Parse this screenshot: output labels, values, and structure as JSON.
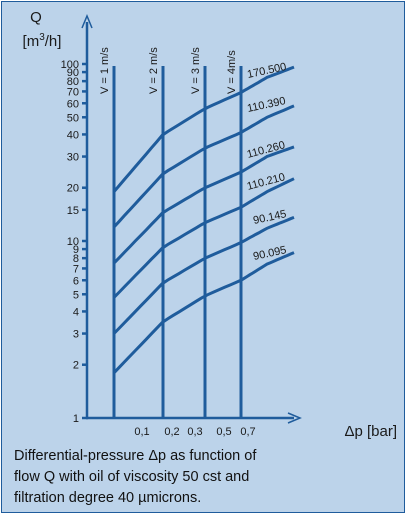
{
  "caption": {
    "line1": "Differential-pressure Δp as function of",
    "line2": "flow Q with oil of viscosity 50 cst and",
    "line3": "filtration degree 40 µmicrons."
  },
  "colors": {
    "accent": "#1f5c9c",
    "background": "#bcd3ea"
  },
  "chart_data": {
    "type": "line",
    "title": "",
    "ylabel": "Q",
    "ylabel_unit": "[m3/h]",
    "xlabel": "Δp [bar]",
    "y_scale": "log",
    "ylim": [
      1,
      100
    ],
    "xlim": [
      0,
      0.9
    ],
    "x_ticks": [
      0.1,
      0.2,
      0.3,
      0.5,
      0.7
    ],
    "x_tick_labels": [
      "0,1",
      "0,2",
      "0,3",
      "0,5",
      "0,7"
    ],
    "y_ticks": [
      1,
      2,
      3,
      4,
      5,
      6,
      7,
      8,
      9,
      10,
      15,
      20,
      30,
      40,
      50,
      60,
      70,
      80,
      90,
      100
    ],
    "y_tick_labels": [
      "1",
      "2",
      "3",
      "4",
      "5",
      "6",
      "7",
      "8",
      "9",
      "10",
      "15",
      "20",
      "30",
      "40",
      "50",
      "60",
      "70",
      "80",
      "90",
      "100"
    ],
    "velocity_lines": [
      {
        "label": "V = 1 m/s",
        "x": 0.04
      },
      {
        "label": "V = 2 m/s",
        "x": 0.2
      },
      {
        "label": "V = 3 m/s",
        "x": 0.33
      },
      {
        "label": "V = 4m/s",
        "x": 0.44
      }
    ],
    "series": [
      {
        "name": "170.500",
        "x": [
          0.04,
          0.2,
          0.33,
          0.44,
          0.6,
          0.74
        ],
        "y": [
          19,
          40,
          56,
          69,
          84,
          96
        ]
      },
      {
        "name": "110.390",
        "x": [
          0.04,
          0.2,
          0.33,
          0.44,
          0.6,
          0.74
        ],
        "y": [
          12,
          24,
          33.5,
          41,
          50,
          58
        ]
      },
      {
        "name": "110.260",
        "x": [
          0.04,
          0.2,
          0.33,
          0.44,
          0.6,
          0.74
        ],
        "y": [
          7.5,
          14.5,
          20,
          24.5,
          30,
          34
        ]
      },
      {
        "name": "110.210",
        "x": [
          0.04,
          0.2,
          0.33,
          0.44,
          0.6,
          0.74
        ],
        "y": [
          4.8,
          9.2,
          12.7,
          15.5,
          19,
          22.5
        ]
      },
      {
        "name": "90.145",
        "x": [
          0.04,
          0.2,
          0.33,
          0.44,
          0.6,
          0.74
        ],
        "y": [
          3,
          5.8,
          8,
          9.8,
          11.8,
          13.6
        ]
      },
      {
        "name": "90.095",
        "x": [
          0.04,
          0.2,
          0.33,
          0.44,
          0.6,
          0.74
        ],
        "y": [
          1.8,
          3.5,
          4.9,
          6,
          7.4,
          8.6
        ]
      }
    ],
    "grid": false
  }
}
